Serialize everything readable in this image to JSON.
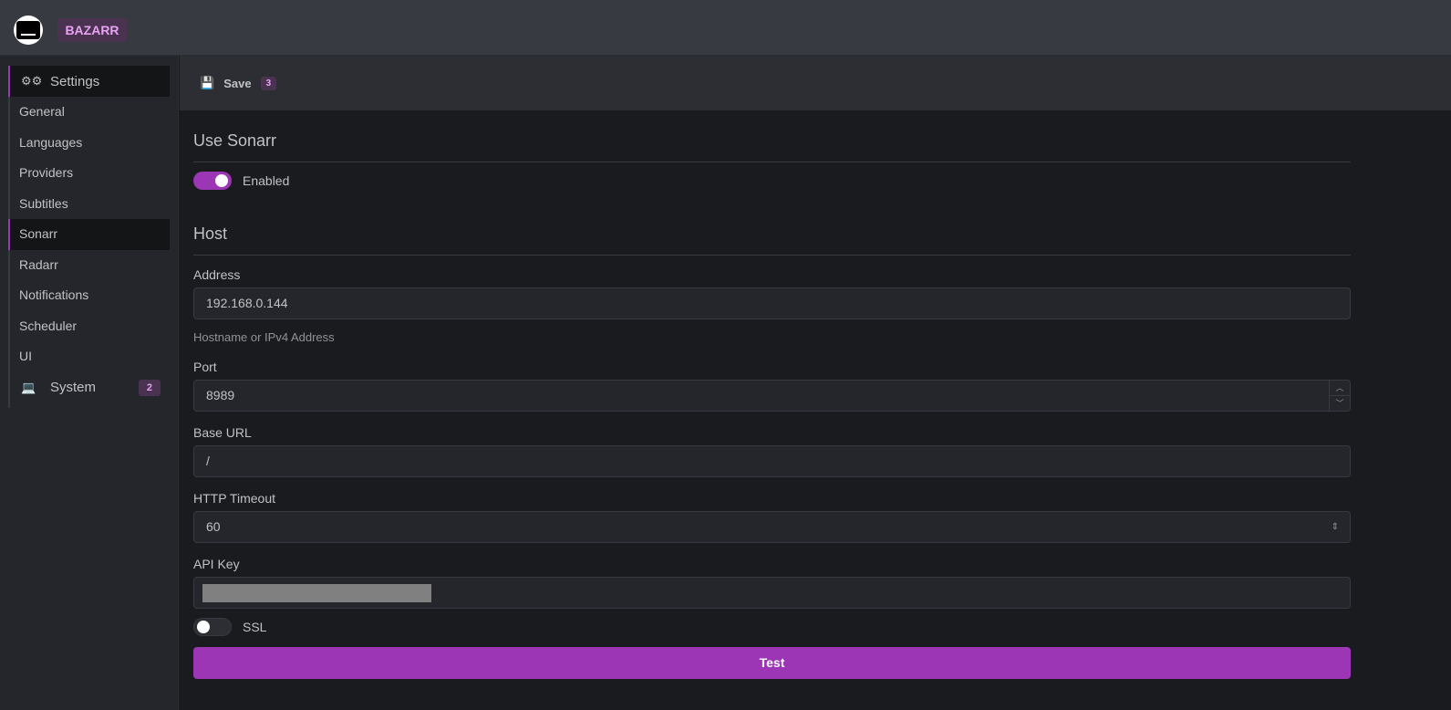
{
  "header": {
    "brand": "BAZARR"
  },
  "sidebar": {
    "settings": "Settings",
    "items": [
      "General",
      "Languages",
      "Providers",
      "Subtitles",
      "Sonarr",
      "Radarr",
      "Notifications",
      "Scheduler",
      "UI"
    ],
    "system": "System",
    "system_badge": "2"
  },
  "toolbar": {
    "save": "Save",
    "save_badge": "3"
  },
  "main": {
    "use_sonarr": "Use Sonarr",
    "enabled_label": "Enabled",
    "enabled": true,
    "host": "Host",
    "address_label": "Address",
    "address": "192.168.0.144",
    "address_hint": "Hostname or IPv4 Address",
    "port_label": "Port",
    "port": "8989",
    "base_url_label": "Base URL",
    "base_url": "/",
    "timeout_label": "HTTP Timeout",
    "timeout": "60",
    "api_key_label": "API Key",
    "ssl_label": "SSL",
    "ssl": false,
    "test": "Test"
  },
  "colors": {
    "accent": "#9c36b5"
  }
}
